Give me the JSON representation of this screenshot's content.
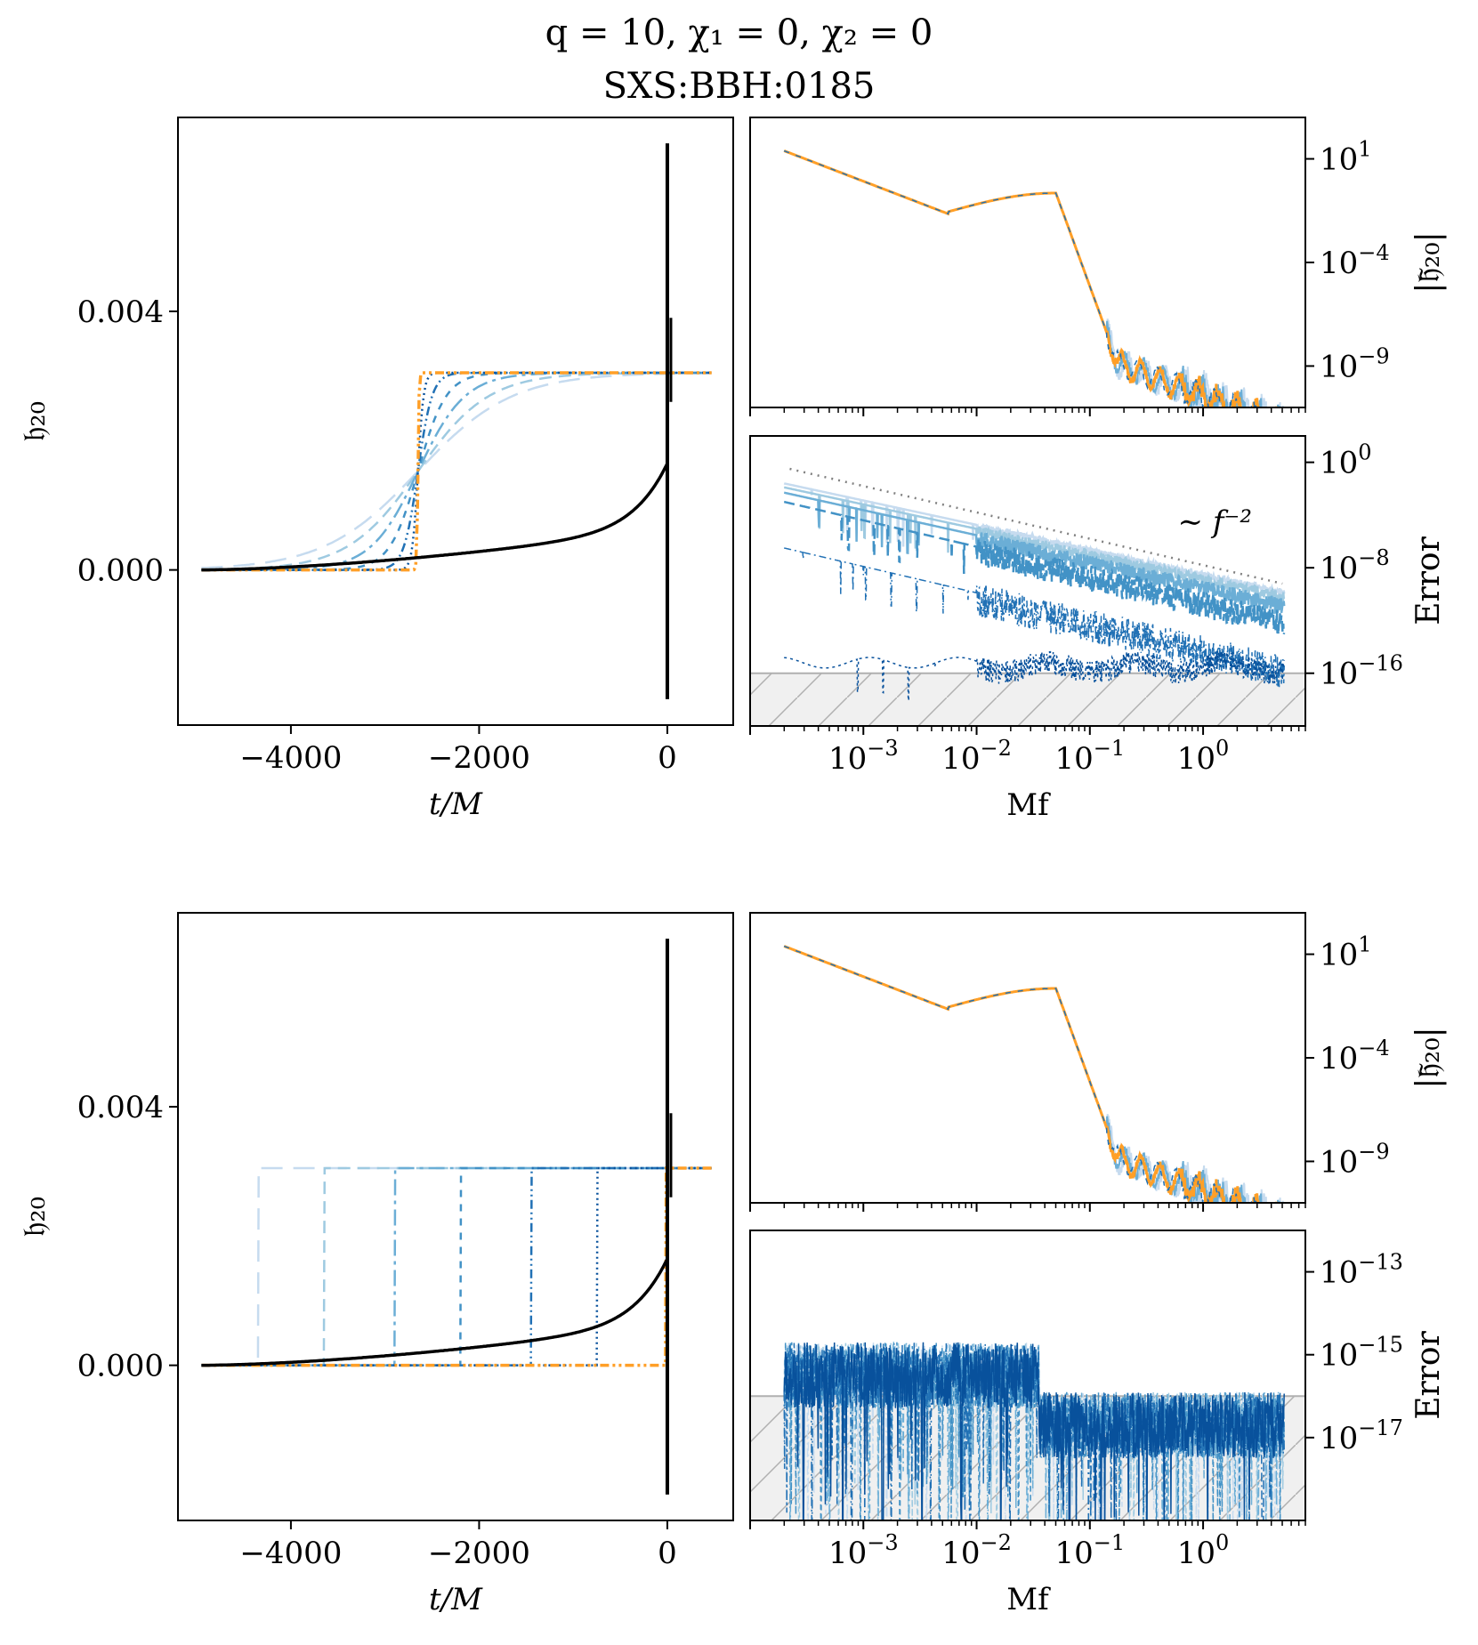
{
  "figure": {
    "title": "q = 10, χ₁ = 0, χ₂ = 0",
    "subtitle": "SXS:BBH:0185"
  },
  "chart_data": [
    {
      "id": "top-time",
      "type": "line",
      "xlabel": "t/M",
      "ylabel": "𝔥₂₀",
      "xlim": [
        -5200,
        700
      ],
      "ylim": [
        -0.0024,
        0.007
      ],
      "xticks": [
        -4000,
        -2000,
        0
      ],
      "xtick_labels": [
        "−4000",
        "−2000",
        "0"
      ],
      "yticks": [
        0.0,
        0.004
      ],
      "ytick_labels": [
        "0.000",
        "0.004"
      ],
      "memory_start": -4950,
      "memory_final": 0.00305,
      "black_curve": {
        "rise_start": -4950,
        "end": 0.00165,
        "peak": 0.0066,
        "trough": -0.002
      },
      "taper_curves": {
        "center": -2650,
        "widths": [
          1000,
          750,
          500,
          300,
          150,
          60
        ],
        "orange_width": 12
      },
      "grid": false
    },
    {
      "id": "top-freq-amp",
      "type": "line",
      "log_x": true,
      "log_y": true,
      "ylabel": "|𝔥̃₂₀|",
      "xlim": [
        0.0001,
        8
      ],
      "ylim": [
        1e-11,
        1000.0
      ],
      "ytick_exponents": [
        1,
        -4,
        -9
      ],
      "yticks": [
        "10^1",
        "10^-4",
        "10^-9"
      ],
      "grid": false
    },
    {
      "id": "top-freq-error",
      "type": "line",
      "log_x": true,
      "log_y": true,
      "xlabel": "Mf",
      "ylabel": "Error",
      "xlim": [
        0.0001,
        8
      ],
      "ylim": [
        1e-20,
        100.0
      ],
      "ytick_exponents": [
        0,
        -8,
        -16
      ],
      "yticks": [
        "10^0",
        "10^-8",
        "10^-16"
      ],
      "xtick_exponents": [
        -3,
        -2,
        -1,
        0
      ],
      "xticks": [
        "10^-3",
        "10^-2",
        "10^-1",
        "10^0"
      ],
      "annotation": "∼ f⁻²",
      "floor": 1e-16,
      "grid": false
    },
    {
      "id": "bottom-time",
      "type": "line",
      "xlabel": "t/M",
      "ylabel": "𝔥₂₀",
      "xlim": [
        -5200,
        700
      ],
      "ylim": [
        -0.0024,
        0.007
      ],
      "xticks": [
        -4000,
        -2000,
        0
      ],
      "xtick_labels": [
        "−4000",
        "−2000",
        "0"
      ],
      "yticks": [
        0.0,
        0.004
      ],
      "ytick_labels": [
        "0.000",
        "0.004"
      ],
      "step_positions": [
        -4350,
        -3650,
        -2900,
        -2200,
        -1450,
        -750,
        -20
      ],
      "memory_final": 0.00305,
      "grid": false
    },
    {
      "id": "bottom-freq-amp",
      "type": "line",
      "log_x": true,
      "log_y": true,
      "ylabel": "|𝔥̃₂₀|",
      "xlim": [
        0.0001,
        8
      ],
      "ylim": [
        1e-11,
        1000.0
      ],
      "ytick_exponents": [
        1,
        -4,
        -9
      ],
      "yticks": [
        "10^1",
        "10^-4",
        "10^-9"
      ],
      "grid": false
    },
    {
      "id": "bottom-freq-error",
      "type": "line",
      "log_x": true,
      "log_y": true,
      "xlabel": "Mf",
      "ylabel": "Error",
      "xlim": [
        0.0001,
        8
      ],
      "ylim": [
        1e-19,
        1e-12
      ],
      "ytick_exponents": [
        -13,
        -15,
        -17
      ],
      "yticks": [
        "10^-13",
        "10^-15",
        "10^-17"
      ],
      "xtick_exponents": [
        -3,
        -2,
        -1,
        0
      ],
      "xticks": [
        "10^-3",
        "10^-2",
        "10^-1",
        "10^0"
      ],
      "floor": 1e-16,
      "grid": false
    }
  ],
  "colors": {
    "blues": [
      "#c6dbef",
      "#9ecae1",
      "#6baed6",
      "#4292c6",
      "#2171b5",
      "#08519c"
    ],
    "orange": "#ff9f27",
    "black": "#000000",
    "dotted": "#808080",
    "floor_fill": "#f0f0f0",
    "hatch": "#b0b0b0"
  }
}
